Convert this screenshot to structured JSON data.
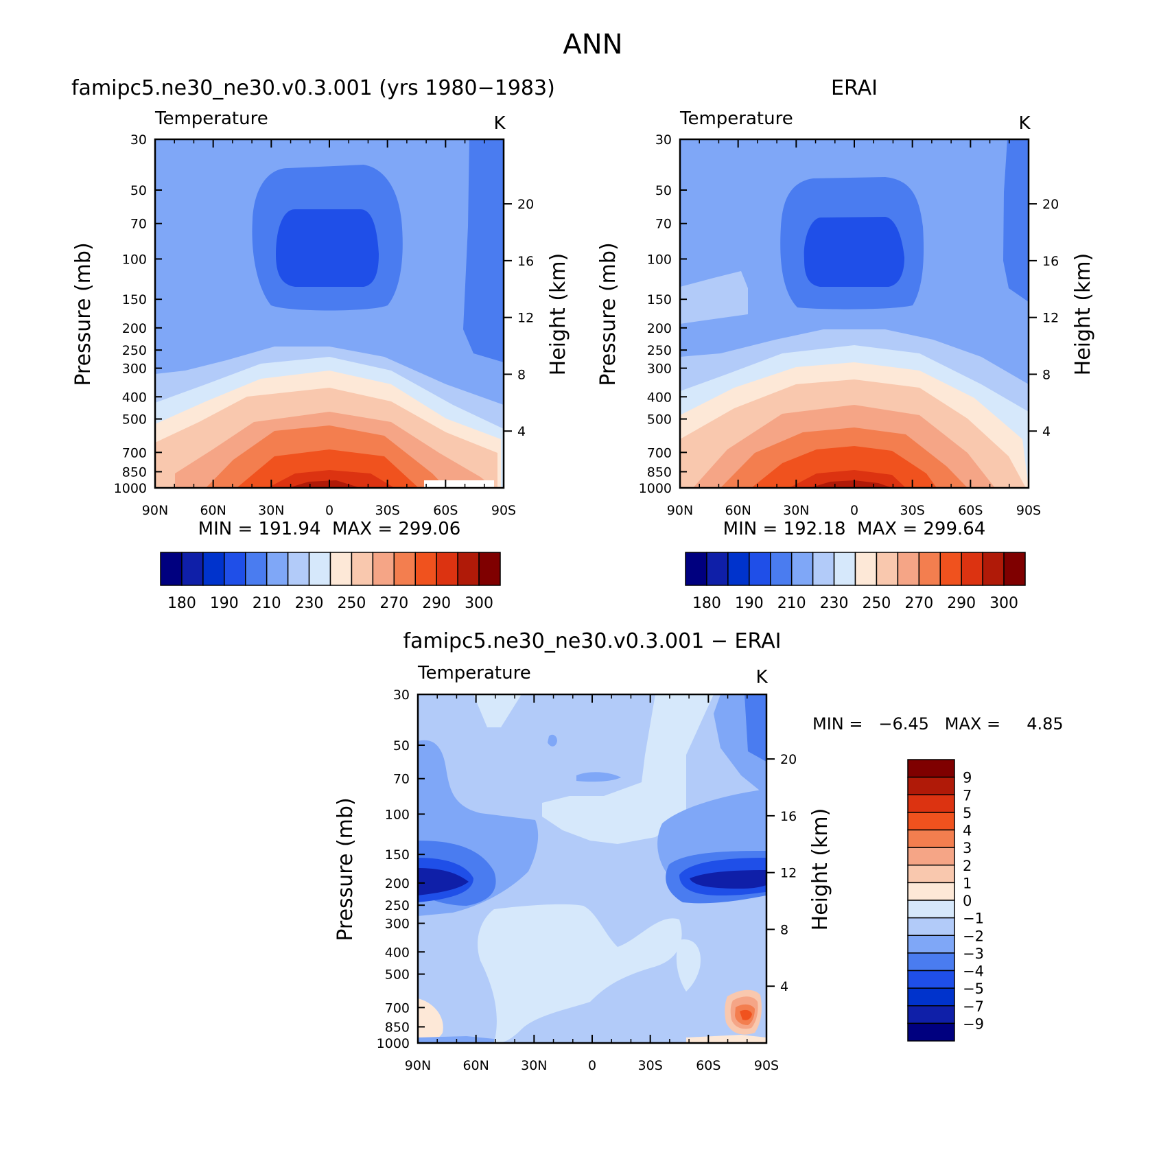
{
  "figure_title": "ANN",
  "colors": {
    "temperature_levels": [
      "#00007f",
      "#0f1fa8",
      "#0033cc",
      "#1f4fe8",
      "#4a7cf0",
      "#7fa7f7",
      "#b2cbf9",
      "#d6e8fb",
      "#fde8d7",
      "#f9c8ae",
      "#f5a586",
      "#f37e4f",
      "#f0521e",
      "#dc3311",
      "#b01a08",
      "#7f0000"
    ],
    "difference_levels": [
      "#00007f",
      "#0f1fa8",
      "#0033cc",
      "#1f4fe8",
      "#4a7cf0",
      "#7fa7f7",
      "#b2cbf9",
      "#d6e8fb",
      "#fde8d7",
      "#f9c8ae",
      "#f5a586",
      "#f37e4f",
      "#f0521e",
      "#dc3311",
      "#b01a08",
      "#7f0000"
    ]
  },
  "chart_data": [
    {
      "type": "heatmap",
      "title": "famipc5.ne30_ne30.v0.3.001 (yrs 1980−1983)",
      "subtitle_left": "Temperature",
      "subtitle_right": "K",
      "ylabel": "Pressure (mb)",
      "y2label": "Height (km)",
      "x_ticks": [
        "90N",
        "60N",
        "30N",
        "0",
        "30S",
        "60S",
        "90S"
      ],
      "y_ticks": [
        30,
        50,
        70,
        100,
        150,
        200,
        250,
        300,
        400,
        500,
        700,
        850,
        1000
      ],
      "y2_ticks": [
        20,
        16,
        12,
        8,
        4
      ],
      "ylim": [
        30,
        1000
      ],
      "log_y": true,
      "min_label": "MIN = 191.94  MAX = 299.06",
      "colorbar_labels": [
        "180",
        "190",
        "210",
        "230",
        "250",
        "270",
        "290",
        "300"
      ],
      "colorbar_orientation": "horizontal"
    },
    {
      "type": "heatmap",
      "title": "ERAI",
      "subtitle_left": "Temperature",
      "subtitle_right": "K",
      "ylabel": "Pressure (mb)",
      "y2label": "Height (km)",
      "x_ticks": [
        "90N",
        "60N",
        "30N",
        "0",
        "30S",
        "60S",
        "90S"
      ],
      "y_ticks": [
        30,
        50,
        70,
        100,
        150,
        200,
        250,
        300,
        400,
        500,
        700,
        850,
        1000
      ],
      "y2_ticks": [
        20,
        16,
        12,
        8,
        4
      ],
      "ylim": [
        30,
        1000
      ],
      "log_y": true,
      "min_label": "MIN = 192.18  MAX = 299.64",
      "colorbar_labels": [
        "180",
        "190",
        "210",
        "230",
        "250",
        "270",
        "290",
        "300"
      ],
      "colorbar_orientation": "horizontal"
    },
    {
      "type": "heatmap",
      "title": "famipc5.ne30_ne30.v0.3.001 − ERAI",
      "subtitle_left": "Temperature",
      "subtitle_right": "K",
      "ylabel": "Pressure (mb)",
      "y2label": "Height (km)",
      "x_ticks": [
        "90N",
        "60N",
        "30N",
        "0",
        "30S",
        "60S",
        "90S"
      ],
      "y_ticks": [
        30,
        50,
        70,
        100,
        150,
        200,
        250,
        300,
        400,
        500,
        700,
        850,
        1000
      ],
      "y2_ticks": [
        20,
        16,
        12,
        8,
        4
      ],
      "ylim": [
        30,
        1000
      ],
      "log_y": true,
      "min_label": "MIN =   −6.45   MAX =     4.85",
      "colorbar_labels": [
        "9",
        "7",
        "5",
        "4",
        "3",
        "2",
        "1",
        "0",
        "−1",
        "−2",
        "−3",
        "−4",
        "−5",
        "−7",
        "−9"
      ],
      "colorbar_orientation": "vertical"
    }
  ]
}
